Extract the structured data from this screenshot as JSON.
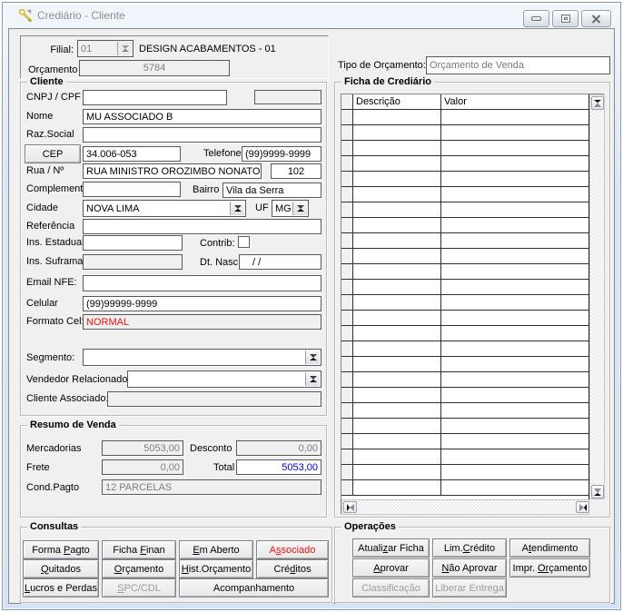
{
  "window": {
    "title": "Crediário - Cliente",
    "controls": {
      "minimize": "minimize-icon",
      "maximize": "restore-icon",
      "close": "close-icon"
    }
  },
  "colors": {
    "highlight_red": "#ee1111",
    "total_blue": "#0000d8",
    "client_bg": "#f0f0f0",
    "frame_blue": "#d5e3f4"
  },
  "top": {
    "filial_label": "Filial:",
    "filial_value": "01",
    "filial_company": "DESIGN ACABAMENTOS - 01",
    "orcamento_label": "Orçamento",
    "orcamento_value": "5784",
    "tipo_orcamento_label": "Tipo de Orçamento:",
    "tipo_orcamento_value": "Orçamento de Venda"
  },
  "cliente": {
    "title": "Cliente",
    "cnpj_label": "CNPJ / CPF",
    "cnpj_value": "",
    "cnpj_extra_value": "",
    "nome_label": "Nome",
    "nome_value": "MU ASSOCIADO B",
    "razsocial_label": "Raz.Social",
    "razsocial_value": "",
    "cep_button": "CEP",
    "cep_value": "34.006-053",
    "telefone_label": "Telefone",
    "telefone_value": "(99)9999-9999",
    "rua_label": "Rua / Nº",
    "rua_value": "RUA MINISTRO OROZIMBO NONATO",
    "numero_value": "102",
    "complemento_label": "Complement",
    "complemento_value": "",
    "bairro_label": "Bairro",
    "bairro_value": "Vila da Serra",
    "cidade_label": "Cidade",
    "cidade_value": "NOVA LIMA",
    "uf_label": "UF",
    "uf_value": "MG",
    "referencia_label": "Referência",
    "referencia_value": "",
    "ins_estadual_label": "Ins. Estadual",
    "ins_estadual_value": "",
    "contrib_label": "Contrib:",
    "contrib_checked": false,
    "ins_suframa_label": "Ins. Suframa",
    "ins_suframa_value": "",
    "dt_nasc_label": "Dt. Nasc",
    "dt_nasc_value": "/ /",
    "email_label": "Email NFE:",
    "email_value": "",
    "celular_label": "Celular",
    "celular_value": "(99)99999-9999",
    "formato_label": "Formato Cel:",
    "formato_value": "NORMAL",
    "segmento_label": "Segmento:",
    "segmento_value": "",
    "vendedor_label": "Vendedor Relacionado:",
    "vendedor_value": "",
    "cliente_assoc_label": "Cliente Associado:",
    "cliente_assoc_value": ""
  },
  "ficha": {
    "title": "Ficha de Crediário",
    "col_descricao": "Descrição",
    "col_valor": "Valor",
    "row_count": 25,
    "rows": []
  },
  "resumo": {
    "title": "Resumo de Venda",
    "mercadorias_label": "Mercadorias",
    "mercadorias_value": "5053,00",
    "desconto_label": "Desconto",
    "desconto_value": "0,00",
    "frete_label": "Frete",
    "frete_value": "0,00",
    "total_label": "Total",
    "total_value": "5053,00",
    "condpagto_label": "Cond.Pagto",
    "condpagto_value": "12 PARCELAS"
  },
  "consultas": {
    "title": "Consultas",
    "buttons": [
      {
        "id": "forma-pagto",
        "pre": "Forma ",
        "accel": "P",
        "post": "agto"
      },
      {
        "id": "ficha-finan",
        "pre": "Ficha ",
        "accel": "F",
        "post": "inan"
      },
      {
        "id": "em-aberto",
        "pre": "",
        "accel": "E",
        "post": "m Aberto"
      },
      {
        "id": "associado",
        "pre": "A",
        "accel": "s",
        "post": "sociado",
        "red": true
      },
      {
        "id": "quitados",
        "pre": "",
        "accel": "Q",
        "post": "uitados"
      },
      {
        "id": "orcamento",
        "pre": "",
        "accel": "O",
        "post": "rçamento"
      },
      {
        "id": "hist-orcamento",
        "pre": "",
        "accel": "H",
        "post": "ist.Orçamento"
      },
      {
        "id": "creditos",
        "pre": "Cré",
        "accel": "d",
        "post": "itos"
      },
      {
        "id": "lucros-e-perdas",
        "pre": "",
        "accel": "L",
        "post": "ucros e Perdas"
      },
      {
        "id": "spc-cdl",
        "pre": "",
        "accel": "S",
        "post": "PC/CDL",
        "disabled": true
      },
      {
        "id": "acompanhamento",
        "pre": "Acompanhamento",
        "accel": "",
        "post": ""
      }
    ]
  },
  "operacoes": {
    "title": "Operações",
    "buttons": [
      {
        "id": "atualizar-ficha",
        "pre": "Atuali",
        "accel": "z",
        "post": "ar Ficha"
      },
      {
        "id": "lim-credito",
        "pre": "Lim.",
        "accel": "C",
        "post": "rédito"
      },
      {
        "id": "atendimento",
        "pre": "A",
        "accel": "t",
        "post": "endimento"
      },
      {
        "id": "aprovar",
        "pre": "",
        "accel": "A",
        "post": "provar"
      },
      {
        "id": "nao-aprovar",
        "pre": "",
        "accel": "N",
        "post": "ão Aprovar"
      },
      {
        "id": "impr-orcamento",
        "pre": "Impr. ",
        "accel": "Or",
        "post": "çamento"
      },
      {
        "id": "classificacao",
        "pre": "Classificação",
        "accel": "",
        "post": "",
        "disabled": true
      },
      {
        "id": "liberar-entrega",
        "pre": "Liberar Entrega",
        "accel": "",
        "post": "",
        "disabled": true
      }
    ]
  },
  "icons": {
    "window_icon": "tools-key-icon",
    "combo_arrow": "chevron-down-icon",
    "scrollbar": [
      "arrow-up-icon",
      "arrow-down-icon",
      "arrow-left-icon",
      "arrow-right-icon"
    ]
  }
}
